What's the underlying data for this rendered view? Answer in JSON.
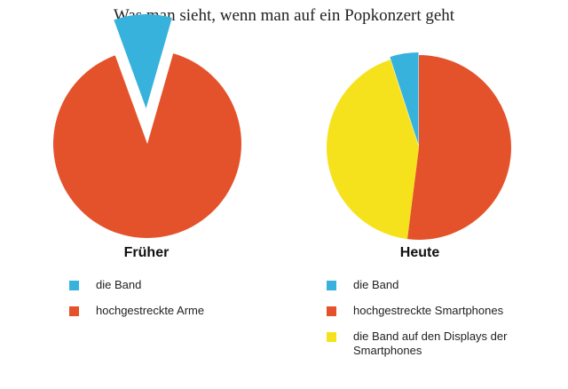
{
  "title": "Was man sieht, wenn man auf ein Popkonzert geht",
  "colors": {
    "band": "#36b2dc",
    "orange": "#e4522b",
    "yellow": "#f6e21c"
  },
  "chart_data": [
    {
      "type": "pie",
      "title": "Früher",
      "series": [
        {
          "label": "die Band",
          "value": 10,
          "color": "#36b2dc",
          "exploded": true
        },
        {
          "label": "hochgestreckte Arme",
          "value": 90,
          "color": "#e4522b",
          "exploded": false
        }
      ]
    },
    {
      "type": "pie",
      "title": "Heute",
      "series": [
        {
          "label": "die Band",
          "value": 5,
          "color": "#36b2dc",
          "exploded": true
        },
        {
          "label": "hochgestreckte Smartphones",
          "value": 52,
          "color": "#e4522b",
          "exploded": false
        },
        {
          "label": "die Band auf den Displays der Smartphones",
          "value": 43,
          "color": "#f6e21c",
          "exploded": false
        }
      ]
    }
  ]
}
